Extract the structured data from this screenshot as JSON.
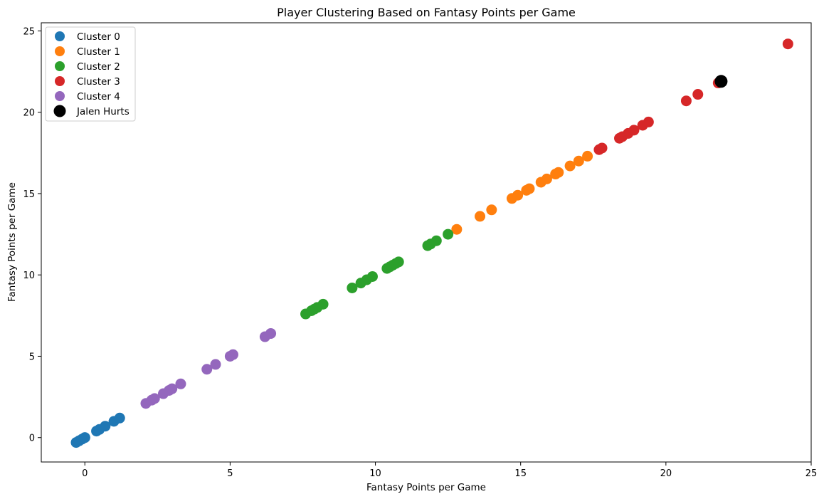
{
  "chart_data": {
    "type": "scatter",
    "title": "Player Clustering Based on Fantasy Points per Game",
    "xlabel": "Fantasy Points per Game",
    "ylabel": "Fantasy Points per Game",
    "xlim": [
      -1.5,
      25.0
    ],
    "ylim": [
      -1.5,
      25.5
    ],
    "xticks": [
      0,
      5,
      10,
      15,
      20,
      25
    ],
    "yticks": [
      0,
      5,
      10,
      15,
      20,
      25
    ],
    "grid": false,
    "legend_position": "upper-left",
    "series": [
      {
        "name": "Cluster 0",
        "color": "#1f77b4",
        "marker": "circle",
        "points": [
          [
            -0.3,
            -0.3
          ],
          [
            -0.2,
            -0.2
          ],
          [
            -0.1,
            -0.1
          ],
          [
            0.0,
            0.0
          ],
          [
            0.0,
            0.0
          ],
          [
            0.4,
            0.4
          ],
          [
            0.5,
            0.5
          ],
          [
            0.7,
            0.7
          ],
          [
            1.0,
            1.0
          ],
          [
            1.2,
            1.2
          ]
        ]
      },
      {
        "name": "Cluster 1",
        "color": "#ff7f0e",
        "marker": "circle",
        "points": [
          [
            12.8,
            12.8
          ],
          [
            13.6,
            13.6
          ],
          [
            14.0,
            14.0
          ],
          [
            14.7,
            14.7
          ],
          [
            14.9,
            14.9
          ],
          [
            15.2,
            15.2
          ],
          [
            15.3,
            15.3
          ],
          [
            15.7,
            15.7
          ],
          [
            15.9,
            15.9
          ],
          [
            16.2,
            16.2
          ],
          [
            16.3,
            16.3
          ],
          [
            16.7,
            16.7
          ],
          [
            17.0,
            17.0
          ],
          [
            17.3,
            17.3
          ]
        ]
      },
      {
        "name": "Cluster 2",
        "color": "#2ca02c",
        "marker": "circle",
        "points": [
          [
            7.6,
            7.6
          ],
          [
            7.8,
            7.8
          ],
          [
            7.9,
            7.9
          ],
          [
            8.0,
            8.0
          ],
          [
            8.2,
            8.2
          ],
          [
            9.2,
            9.2
          ],
          [
            9.5,
            9.5
          ],
          [
            9.7,
            9.7
          ],
          [
            9.9,
            9.9
          ],
          [
            10.4,
            10.4
          ],
          [
            10.5,
            10.5
          ],
          [
            10.6,
            10.6
          ],
          [
            10.7,
            10.7
          ],
          [
            10.8,
            10.8
          ],
          [
            11.8,
            11.8
          ],
          [
            11.9,
            11.9
          ],
          [
            12.1,
            12.1
          ],
          [
            12.5,
            12.5
          ]
        ]
      },
      {
        "name": "Cluster 3",
        "color": "#d62728",
        "marker": "circle",
        "points": [
          [
            17.7,
            17.7
          ],
          [
            17.8,
            17.8
          ],
          [
            18.4,
            18.4
          ],
          [
            18.5,
            18.5
          ],
          [
            18.7,
            18.7
          ],
          [
            18.9,
            18.9
          ],
          [
            19.2,
            19.2
          ],
          [
            19.4,
            19.4
          ],
          [
            20.7,
            20.7
          ],
          [
            21.1,
            21.1
          ],
          [
            21.8,
            21.8
          ],
          [
            24.2,
            24.2
          ]
        ]
      },
      {
        "name": "Cluster 4",
        "color": "#9467bd",
        "marker": "circle",
        "points": [
          [
            2.1,
            2.1
          ],
          [
            2.3,
            2.3
          ],
          [
            2.4,
            2.4
          ],
          [
            2.7,
            2.7
          ],
          [
            2.9,
            2.9
          ],
          [
            3.0,
            3.0
          ],
          [
            3.3,
            3.3
          ],
          [
            4.2,
            4.2
          ],
          [
            4.5,
            4.5
          ],
          [
            5.0,
            5.0
          ],
          [
            5.1,
            5.1
          ],
          [
            6.2,
            6.2
          ],
          [
            6.4,
            6.4
          ]
        ]
      },
      {
        "name": "Jalen Hurts",
        "color": "#000000",
        "marker": "circle-large",
        "points": [
          [
            21.9,
            21.9
          ]
        ]
      }
    ]
  }
}
